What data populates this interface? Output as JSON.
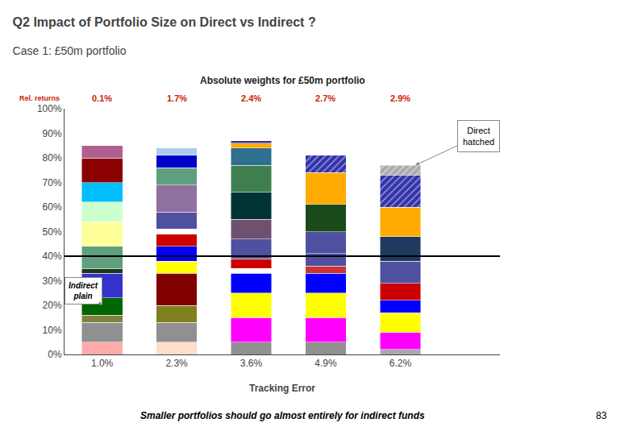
{
  "chart_data": {
    "type": "bar",
    "stacked": true,
    "title": "Q2 Impact of Portfolio Size on Direct vs Indirect ?",
    "subtitle": "Case 1: £50m portfolio",
    "chart_title": "Absolute weights for £50m portfolio",
    "xlabel": "Tracking Error",
    "footer": "Smaller portfolios should go almost entirely for indirect funds",
    "page": "83",
    "categories": [
      "1.0%",
      "2.3%",
      "3.6%",
      "4.9%",
      "6.2%"
    ],
    "ylim": [
      0,
      100
    ],
    "yticks": [
      {
        "value": 0,
        "label": "0%"
      },
      {
        "value": 10,
        "label": "10%"
      },
      {
        "value": 20,
        "label": "20%"
      },
      {
        "value": 30,
        "label": "30%"
      },
      {
        "value": 40,
        "label": "40%"
      },
      {
        "value": 50,
        "label": "50%"
      },
      {
        "value": 60,
        "label": "60%"
      },
      {
        "value": 70,
        "label": "70%"
      },
      {
        "value": 80,
        "label": "80%"
      },
      {
        "value": 90,
        "label": "90%"
      },
      {
        "value": 100,
        "label": "100%"
      }
    ],
    "grid": false,
    "reference_line": 40,
    "rel_returns": {
      "label": "Rel. returns",
      "labels": [
        "0.1%",
        "1.7%",
        "2.4%",
        "2.7%",
        "2.9%"
      ],
      "color": "#cc2200"
    },
    "callouts": [
      {
        "text": "Indirect\nplain",
        "category": "1.0%",
        "y": 20
      },
      {
        "text": "Direct\nhatched",
        "category": "6.2%"
      }
    ],
    "series": [
      {
        "color": "#ffaaaa",
        "values": [
          5,
          null,
          null,
          null,
          null
        ]
      },
      {
        "color": "#909090",
        "values": [
          8,
          null,
          null,
          null,
          null
        ]
      },
      {
        "color": "#808040",
        "values": [
          3,
          null,
          null,
          null,
          null
        ]
      },
      {
        "color": "#006600",
        "values": [
          7,
          null,
          null,
          null,
          null
        ]
      },
      {
        "color": "#3333cc",
        "values": [
          10,
          null,
          null,
          null,
          null
        ]
      },
      {
        "color": "#1a3a1a",
        "values": [
          2,
          null,
          null,
          null,
          null
        ]
      },
      {
        "color": "#5f9f7f",
        "values": [
          9,
          null,
          null,
          null,
          null
        ]
      },
      {
        "color": "#ffff99",
        "values": [
          10,
          null,
          null,
          null,
          null
        ]
      },
      {
        "color": "#ccffcc",
        "values": [
          8,
          null,
          null,
          null,
          null
        ]
      },
      {
        "color": "#00bfff",
        "values": [
          8,
          null,
          null,
          null,
          null
        ]
      },
      {
        "color": "#8b0000",
        "values": [
          10,
          null,
          null,
          null,
          null
        ]
      },
      {
        "color": "#b06090",
        "values": [
          5,
          null,
          null,
          null,
          null
        ]
      },
      {
        "color": "#ffddcc",
        "values": [
          null,
          5,
          null,
          null,
          null
        ]
      },
      {
        "color": "#909090",
        "values": [
          null,
          8,
          null,
          null,
          null
        ]
      },
      {
        "color": "#808020",
        "values": [
          null,
          7,
          null,
          null,
          null
        ]
      },
      {
        "color": "#800000",
        "values": [
          null,
          13,
          null,
          null,
          null
        ]
      },
      {
        "color": "#ffff00",
        "values": [
          null,
          5,
          null,
          null,
          null
        ]
      },
      {
        "color": "#0000ff",
        "values": [
          null,
          6,
          null,
          null,
          null
        ]
      },
      {
        "color": "#cc0000",
        "values": [
          null,
          5,
          null,
          null,
          null
        ]
      },
      {
        "color": "#ffffff",
        "values": [
          null,
          2,
          null,
          null,
          null
        ]
      },
      {
        "color": "#5050a0",
        "values": [
          null,
          7,
          null,
          null,
          null
        ]
      },
      {
        "color": "#9070a0",
        "values": [
          null,
          11,
          null,
          null,
          null
        ]
      },
      {
        "color": "#5f9f7f",
        "values": [
          null,
          7,
          null,
          null,
          null
        ]
      },
      {
        "color": "#0000cc",
        "values": [
          null,
          5,
          null,
          null,
          null
        ]
      },
      {
        "color": "#aaccee",
        "values": [
          null,
          3,
          null,
          null,
          null
        ]
      },
      {
        "color": "#909090",
        "values": [
          null,
          null,
          5,
          null,
          null
        ]
      },
      {
        "color": "#ff00ff",
        "values": [
          null,
          null,
          10,
          null,
          null
        ]
      },
      {
        "color": "#ffff00",
        "values": [
          null,
          null,
          10,
          null,
          null
        ]
      },
      {
        "color": "#0000ff",
        "values": [
          null,
          null,
          8,
          null,
          null
        ]
      },
      {
        "color": "#ffffff",
        "values": [
          null,
          null,
          2,
          null,
          null
        ]
      },
      {
        "color": "#cc0000",
        "values": [
          null,
          null,
          4,
          null,
          null
        ]
      },
      {
        "color": "#5050a0",
        "values": [
          null,
          null,
          8,
          null,
          null
        ]
      },
      {
        "color": "#705070",
        "values": [
          null,
          null,
          8,
          null,
          null
        ]
      },
      {
        "color": "#003333",
        "values": [
          null,
          null,
          11,
          null,
          null
        ]
      },
      {
        "color": "#3f7f4f",
        "values": [
          null,
          null,
          11,
          null,
          null
        ]
      },
      {
        "color": "#2f6f8f",
        "values": [
          null,
          null,
          7,
          null,
          null
        ]
      },
      {
        "color": "#ffaa00",
        "values": [
          null,
          null,
          2,
          null,
          null
        ]
      },
      {
        "color": "#3333aa",
        "values": [
          null,
          null,
          1,
          null,
          null
        ]
      },
      {
        "color": "#909090",
        "values": [
          null,
          null,
          null,
          5,
          null
        ]
      },
      {
        "color": "#ff00ff",
        "values": [
          null,
          null,
          null,
          10,
          null
        ]
      },
      {
        "color": "#ffff00",
        "values": [
          null,
          null,
          null,
          10,
          null
        ]
      },
      {
        "color": "#0000ff",
        "values": [
          null,
          null,
          null,
          8,
          null
        ]
      },
      {
        "color": "#cc3333",
        "values": [
          null,
          null,
          null,
          3,
          null
        ]
      },
      {
        "color": "#5050a0",
        "values": [
          null,
          null,
          null,
          5,
          null
        ]
      },
      {
        "color": "#5050a0",
        "values": [
          null,
          null,
          null,
          9,
          null
        ]
      },
      {
        "color": "#1a4a1a",
        "values": [
          null,
          null,
          null,
          11,
          null
        ]
      },
      {
        "color": "#ffaa00",
        "values": [
          null,
          null,
          null,
          13,
          null
        ]
      },
      {
        "color": "#3333aa",
        "values": [
          null,
          null,
          null,
          7,
          null
        ],
        "marker": "hatched"
      },
      {
        "color": "#aaaaaa",
        "values": [
          null,
          null,
          null,
          null,
          2
        ]
      },
      {
        "color": "#ff00ff",
        "values": [
          null,
          null,
          null,
          null,
          7
        ]
      },
      {
        "color": "#ffff00",
        "values": [
          null,
          null,
          null,
          null,
          8
        ]
      },
      {
        "color": "#0000ff",
        "values": [
          null,
          null,
          null,
          null,
          5
        ]
      },
      {
        "color": "#cc0000",
        "values": [
          null,
          null,
          null,
          null,
          7
        ]
      },
      {
        "color": "#5050a0",
        "values": [
          null,
          null,
          null,
          null,
          9
        ]
      },
      {
        "color": "#1e3a5f",
        "values": [
          null,
          null,
          null,
          null,
          10
        ]
      },
      {
        "color": "#ffaa00",
        "values": [
          null,
          null,
          null,
          null,
          12
        ]
      },
      {
        "color": "#3333aa",
        "values": [
          null,
          null,
          null,
          null,
          13
        ],
        "marker": "hatched"
      },
      {
        "color": "#aaaaaa",
        "values": [
          null,
          null,
          null,
          null,
          4
        ],
        "marker": "hatched"
      }
    ]
  }
}
